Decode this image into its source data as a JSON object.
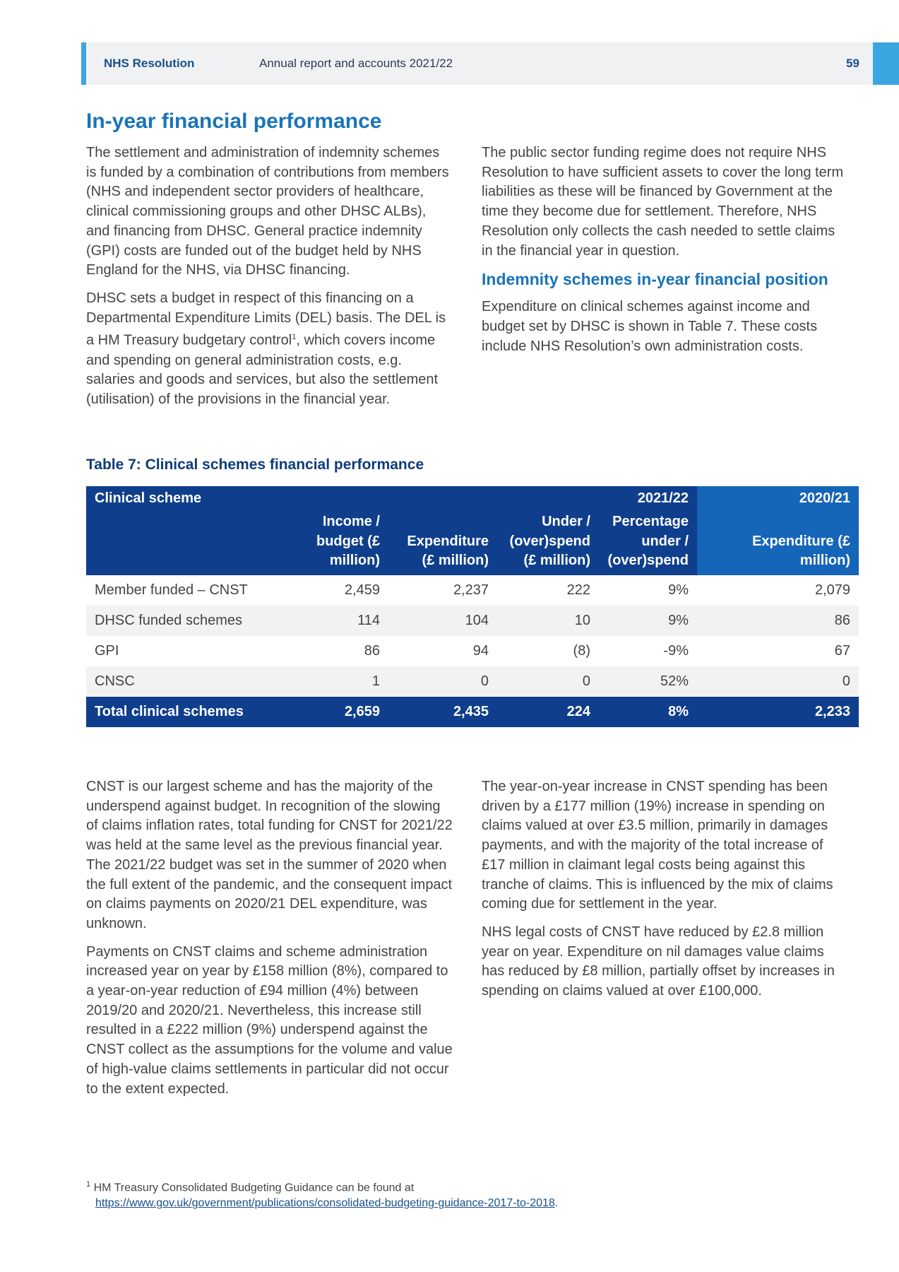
{
  "header": {
    "org": "NHS Resolution",
    "report": "Annual report and accounts 2021/22",
    "page": "59"
  },
  "title": "In-year financial performance",
  "left_paragraphs": [
    "The settlement and administration of indemnity schemes is funded by a combination of contributions from members (NHS and independent sector providers of healthcare, clinical commissioning groups and other DHSC ALBs), and financing from DHSC. General practice indemnity (GPI) costs are funded out of the budget held by NHS England for the NHS, via DHSC financing.",
    "DHSC sets a budget in respect of this financing on a Departmental Expenditure Limits (DEL) basis. The DEL is a HM Treasury budgetary control",
    ", which covers income and spending on general administration costs, e.g. salaries and goods and services, but also the settlement (utilisation) of the provisions in the financial year."
  ],
  "footnote_mark": "1",
  "right_paragraph_1": "The public sector funding regime does not require NHS Resolution to have sufficient assets to cover the long term liabilities as these will be financed by Government at the time they become due for settlement. Therefore, NHS Resolution only collects the cash needed to settle claims in the financial year in question.",
  "subheading": "Indemnity schemes in-year financial position",
  "right_paragraph_2": "Expenditure on clinical schemes against income and budget set by DHSC is shown in Table 7. These costs include NHS Resolution’s own administration costs.",
  "table": {
    "title": "Table 7: Clinical schemes financial performance",
    "group_headers": [
      "Clinical scheme",
      "2021/22",
      "2020/21"
    ],
    "columns": [
      "Income / budget (£ million)",
      "Expenditure (£ million)",
      "Under / (over)spend (£ million)",
      "Percentage under / (over)spend",
      "Expenditure (£ million)"
    ],
    "rows": [
      [
        "Member funded – CNST",
        "2,459",
        "2,237",
        "222",
        "9%",
        "2,079"
      ],
      [
        "DHSC funded schemes",
        "114",
        "104",
        "10",
        "9%",
        "86"
      ],
      [
        "GPI",
        "86",
        "94",
        "(8)",
        "-9%",
        "67"
      ],
      [
        "CNSC",
        "1",
        "0",
        "0",
        "52%",
        "0"
      ]
    ],
    "total": [
      "Total clinical schemes",
      "2,659",
      "2,435",
      "224",
      "8%",
      "2,233"
    ]
  },
  "lower_left": [
    "CNST is our largest scheme and has the majority of the underspend against budget. In recognition of the slowing of claims inflation rates, total funding for CNST for 2021/22 was held at the same level as the previous financial year. The 2021/22 budget was set in the summer of 2020 when the full extent of the pandemic, and the consequent impact on claims payments on 2020/21 DEL expenditure, was unknown.",
    "Payments on CNST claims and scheme administration increased year on year by £158 million (8%), compared to a year-on-year reduction of £94 million (4%) between 2019/20 and 2020/21. Nevertheless, this increase still resulted in a £222 million (9%) underspend against the CNST collect as the assumptions for the volume and value of high-value claims settlements in particular did not occur to the extent expected."
  ],
  "lower_right": [
    "The year-on-year increase in CNST spending has been driven by a £177 million (19%) increase in spending on claims valued at over £3.5 million, primarily in damages payments, and with the majority of the total increase of £17 million in claimant legal costs being against this tranche of claims. This is influenced by the mix of claims coming due for settlement in the year.",
    "NHS legal costs of CNST have reduced by £2.8 million year on year. Expenditure on nil damages value claims has reduced by £8 million, partially offset by increases in spending on claims valued at over £100,000."
  ],
  "footnote": {
    "mark": "1",
    "text": "HM Treasury Consolidated Budgeting Guidance can be found at",
    "link": "https://www.gov.uk/government/publications/consolidated-budgeting-guidance-2017-to-2018",
    "after": "."
  }
}
